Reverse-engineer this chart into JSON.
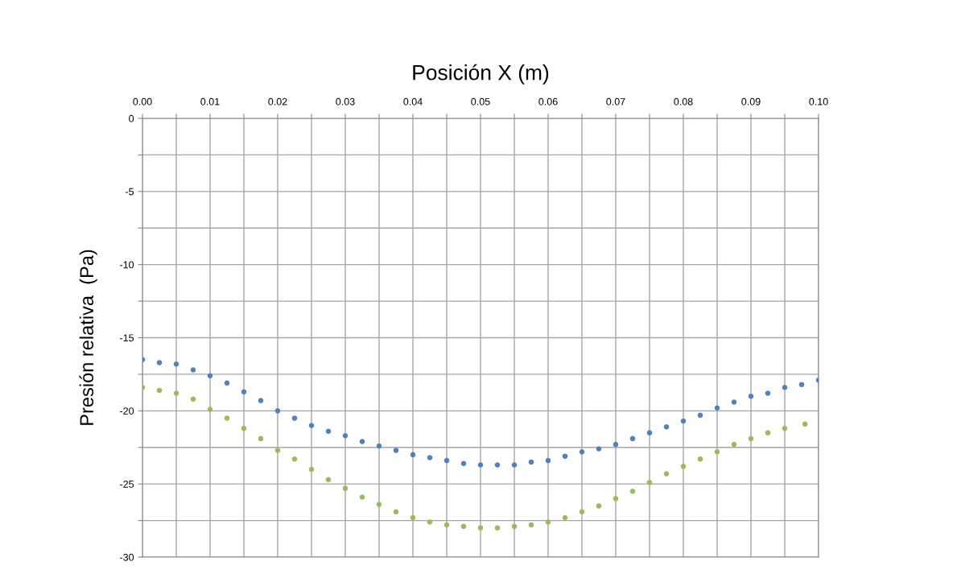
{
  "chart_data": {
    "type": "scatter",
    "xlabel": "Posición X (m)",
    "ylabel": "Presión relativa  (Pa)",
    "xlim": [
      0,
      0.1
    ],
    "ylim": [
      -30,
      0
    ],
    "xticks": [
      {
        "value": 0,
        "label": "0.00"
      },
      {
        "value": 0.005,
        "label": null
      },
      {
        "value": 0.01,
        "label": "0.01"
      },
      {
        "value": 0.015,
        "label": null
      },
      {
        "value": 0.02,
        "label": "0.02"
      },
      {
        "value": 0.025,
        "label": null
      },
      {
        "value": 0.03,
        "label": "0.03"
      },
      {
        "value": 0.035,
        "label": null
      },
      {
        "value": 0.04,
        "label": "0.04"
      },
      {
        "value": 0.045,
        "label": null
      },
      {
        "value": 0.05,
        "label": "0.05"
      },
      {
        "value": 0.055,
        "label": null
      },
      {
        "value": 0.06,
        "label": "0.06"
      },
      {
        "value": 0.065,
        "label": null
      },
      {
        "value": 0.07,
        "label": "0.07"
      },
      {
        "value": 0.075,
        "label": null
      },
      {
        "value": 0.08,
        "label": "0.08"
      },
      {
        "value": 0.085,
        "label": null
      },
      {
        "value": 0.09,
        "label": "0.09"
      },
      {
        "value": 0.095,
        "label": null
      },
      {
        "value": 0.1,
        "label": "0.10"
      }
    ],
    "yticks": [
      0,
      {
        "value": -2.5,
        "label": null
      },
      -5,
      {
        "value": -7.5,
        "label": null
      },
      -10,
      {
        "value": -12.5,
        "label": null
      },
      -15,
      {
        "value": -17.5,
        "label": null
      },
      -20,
      {
        "value": -22.5,
        "label": null
      },
      -25,
      {
        "value": -27.5,
        "label": null
      },
      -30
    ],
    "grid": true,
    "marker": "circle",
    "series": [
      {
        "color": "#9bbb59",
        "x": [
          0,
          0.0025,
          0.005,
          0.0075,
          0.01,
          0.0125,
          0.015,
          0.0175,
          0.02,
          0.0225,
          0.025,
          0.0275,
          0.03,
          0.0325,
          0.035,
          0.0375,
          0.04,
          0.0425,
          0.045,
          0.0475,
          0.05,
          0.0525,
          0.055,
          0.0575,
          0.06,
          0.0625,
          0.065,
          0.0675,
          0.07,
          0.0725,
          0.075,
          0.0775,
          0.08,
          0.0825,
          0.085,
          0.0875,
          0.09,
          0.0925,
          0.095,
          0.098
        ],
        "values": [
          -18.4,
          -18.6,
          -18.8,
          -19.2,
          -19.9,
          -20.5,
          -21.2,
          -21.9,
          -22.7,
          -23.3,
          -24.0,
          -24.7,
          -25.3,
          -25.9,
          -26.4,
          -26.9,
          -27.3,
          -27.6,
          -27.8,
          -27.9,
          -28.0,
          -28.0,
          -27.9,
          -27.8,
          -27.6,
          -27.3,
          -26.9,
          -26.5,
          -26.0,
          -25.5,
          -24.9,
          -24.3,
          -23.8,
          -23.3,
          -22.8,
          -22.3,
          -21.9,
          -21.5,
          -21.2,
          -20.9
        ]
      },
      {
        "color": "#4f81bd",
        "x": [
          0,
          0.0025,
          0.005,
          0.0075,
          0.01,
          0.0125,
          0.015,
          0.0175,
          0.02,
          0.0225,
          0.025,
          0.0275,
          0.03,
          0.0325,
          0.035,
          0.0375,
          0.04,
          0.0425,
          0.045,
          0.0475,
          0.05,
          0.0525,
          0.055,
          0.0575,
          0.06,
          0.0625,
          0.065,
          0.0675,
          0.07,
          0.0725,
          0.075,
          0.0775,
          0.08,
          0.0825,
          0.085,
          0.0875,
          0.09,
          0.0925,
          0.095,
          0.0975,
          0.1
        ],
        "values": [
          -16.5,
          -16.7,
          -16.8,
          -17.2,
          -17.6,
          -18.1,
          -18.7,
          -19.3,
          -20.0,
          -20.5,
          -21.0,
          -21.4,
          -21.7,
          -22.1,
          -22.4,
          -22.7,
          -23.0,
          -23.2,
          -23.4,
          -23.6,
          -23.7,
          -23.7,
          -23.7,
          -23.5,
          -23.4,
          -23.1,
          -22.8,
          -22.6,
          -22.3,
          -21.9,
          -21.5,
          -21.1,
          -20.7,
          -20.3,
          -19.8,
          -19.4,
          -19.0,
          -18.8,
          -18.4,
          -18.2,
          -17.9
        ]
      }
    ]
  }
}
